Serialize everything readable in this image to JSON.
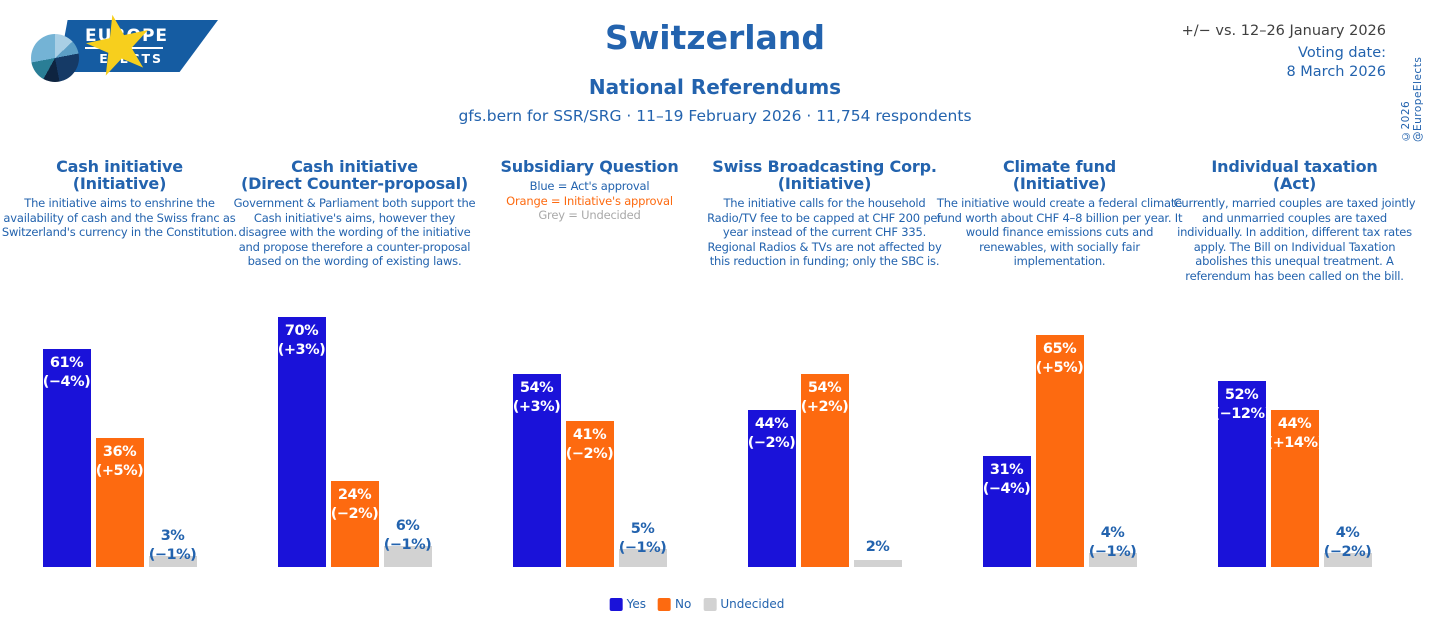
{
  "brand": {
    "line1": "EUROPE",
    "line2": "ELECTS"
  },
  "header": {
    "title": "Switzerland",
    "subtitle": "National Referendums",
    "source_line": "gfs.bern for SSR/SRG · 11–19 February 2026 · 11,754 respondents",
    "change_note": "+/− vs. 12–26 January 2026",
    "voting_date_label": "Voting date:",
    "voting_date": "8 March 2026",
    "copyright": "©2026 @EuropeElects"
  },
  "colors": {
    "yes": "#1a12d9",
    "no": "#fd6a10",
    "undecided": "#d2d2d2",
    "blue_text": "#2363ae",
    "grey_text": "#a9a9a9",
    "dark_text": "#3f3f3f"
  },
  "legend": [
    {
      "label": "Yes",
      "color_key": "yes"
    },
    {
      "label": "No",
      "color_key": "no"
    },
    {
      "label": "Undecided",
      "color_key": "undecided"
    }
  ],
  "chart_data": [
    {
      "type": "bar",
      "title": "Cash initiative",
      "title_line2": "(Initiative)",
      "description": "The initiative aims to enshrine the availability of cash and the Swiss franc as Switzerland's currency in the Constitution.",
      "categories": [
        "Yes",
        "No",
        "Undecided"
      ],
      "ylim": [
        0,
        100
      ],
      "series": [
        {
          "name": "Yes",
          "value": 61,
          "change": -4,
          "value_label": "61%",
          "change_label": "(−4%)",
          "color_key": "yes"
        },
        {
          "name": "No",
          "value": 36,
          "change": 5,
          "value_label": "36%",
          "change_label": "(+5%)",
          "color_key": "no"
        },
        {
          "name": "Undecided",
          "value": 3,
          "change": -1,
          "value_label": "3%",
          "change_label": "(−1%)",
          "color_key": "undecided"
        }
      ]
    },
    {
      "type": "bar",
      "title": "Cash initiative",
      "title_line2": "(Direct Counter-proposal)",
      "description": "Government & Parliament both support the Cash initiative's aims, however they disagree with the wording of the initiative and propose therefore a counter-proposal based on the wording of existing laws.",
      "categories": [
        "Yes",
        "No",
        "Undecided"
      ],
      "ylim": [
        0,
        100
      ],
      "series": [
        {
          "name": "Yes",
          "value": 70,
          "change": 3,
          "value_label": "70%",
          "change_label": "(+3%)",
          "color_key": "yes"
        },
        {
          "name": "No",
          "value": 24,
          "change": -2,
          "value_label": "24%",
          "change_label": "(−2%)",
          "color_key": "no"
        },
        {
          "name": "Undecided",
          "value": 6,
          "change": -1,
          "value_label": "6%",
          "change_label": "(−1%)",
          "color_key": "undecided"
        }
      ]
    },
    {
      "type": "bar",
      "title": "Subsidiary Question",
      "title_line2": "",
      "description_lines": [
        {
          "text": "Blue = Act's approval",
          "color": "#2363ae"
        },
        {
          "text": "Orange = Initiative's approval",
          "color": "#fd6a10"
        },
        {
          "text": "Grey = Undecided",
          "color": "#a9a9a9"
        }
      ],
      "categories": [
        "Act's approval",
        "Initiative's approval",
        "Undecided"
      ],
      "ylim": [
        0,
        100
      ],
      "series": [
        {
          "name": "Act's approval",
          "value": 54,
          "change": 3,
          "value_label": "54%",
          "change_label": "(+3%)",
          "color_key": "yes"
        },
        {
          "name": "Initiative's approval",
          "value": 41,
          "change": -2,
          "value_label": "41%",
          "change_label": "(−2%)",
          "color_key": "no"
        },
        {
          "name": "Undecided",
          "value": 5,
          "change": -1,
          "value_label": "5%",
          "change_label": "(−1%)",
          "color_key": "undecided"
        }
      ]
    },
    {
      "type": "bar",
      "title": "Swiss Broadcasting Corp.",
      "title_line2": "(Initiative)",
      "description": "The initiative calls for the household Radio/TV fee to be capped at CHF 200 per year instead of the current CHF 335. Regional Radios & TVs are not affected by this reduction in funding; only the SBC is.",
      "categories": [
        "Yes",
        "No",
        "Undecided"
      ],
      "ylim": [
        0,
        100
      ],
      "series": [
        {
          "name": "Yes",
          "value": 44,
          "change": -2,
          "value_label": "44%",
          "change_label": "(−2%)",
          "color_key": "yes"
        },
        {
          "name": "No",
          "value": 54,
          "change": 2,
          "value_label": "54%",
          "change_label": "(+2%)",
          "color_key": "no"
        },
        {
          "name": "Undecided",
          "value": 2,
          "change": null,
          "value_label": "2%",
          "change_label": null,
          "color_key": "undecided"
        }
      ]
    },
    {
      "type": "bar",
      "title": "Climate fund",
      "title_line2": "(Initiative)",
      "description": "The initiative would create a federal climate fund worth about CHF 4–8 billion per year. It would finance emissions cuts and renewables, with socially fair implementation.",
      "categories": [
        "Yes",
        "No",
        "Undecided"
      ],
      "ylim": [
        0,
        100
      ],
      "series": [
        {
          "name": "Yes",
          "value": 31,
          "change": -4,
          "value_label": "31%",
          "change_label": "(−4%)",
          "color_key": "yes"
        },
        {
          "name": "No",
          "value": 65,
          "change": 5,
          "value_label": "65%",
          "change_label": "(+5%)",
          "color_key": "no"
        },
        {
          "name": "Undecided",
          "value": 4,
          "change": -1,
          "value_label": "4%",
          "change_label": "(−1%)",
          "color_key": "undecided"
        }
      ]
    },
    {
      "type": "bar",
      "title": "Individual taxation",
      "title_line2": "(Act)",
      "description": "Currently, married couples are taxed jointly and unmarried couples are taxed individually. In addition, different tax rates apply. The Bill on Individual Taxation abolishes this unequal treatment. A referendum has been called on the bill.",
      "categories": [
        "Yes",
        "No",
        "Undecided"
      ],
      "ylim": [
        0,
        100
      ],
      "series": [
        {
          "name": "Yes",
          "value": 52,
          "change": -12,
          "value_label": "52%",
          "change_label": "(−12%)",
          "color_key": "yes"
        },
        {
          "name": "No",
          "value": 44,
          "change": 14,
          "value_label": "44%",
          "change_label": "(+14%)",
          "color_key": "no"
        },
        {
          "name": "Undecided",
          "value": 4,
          "change": -2,
          "value_label": "4%",
          "change_label": "(−2%)",
          "color_key": "undecided"
        }
      ]
    }
  ]
}
